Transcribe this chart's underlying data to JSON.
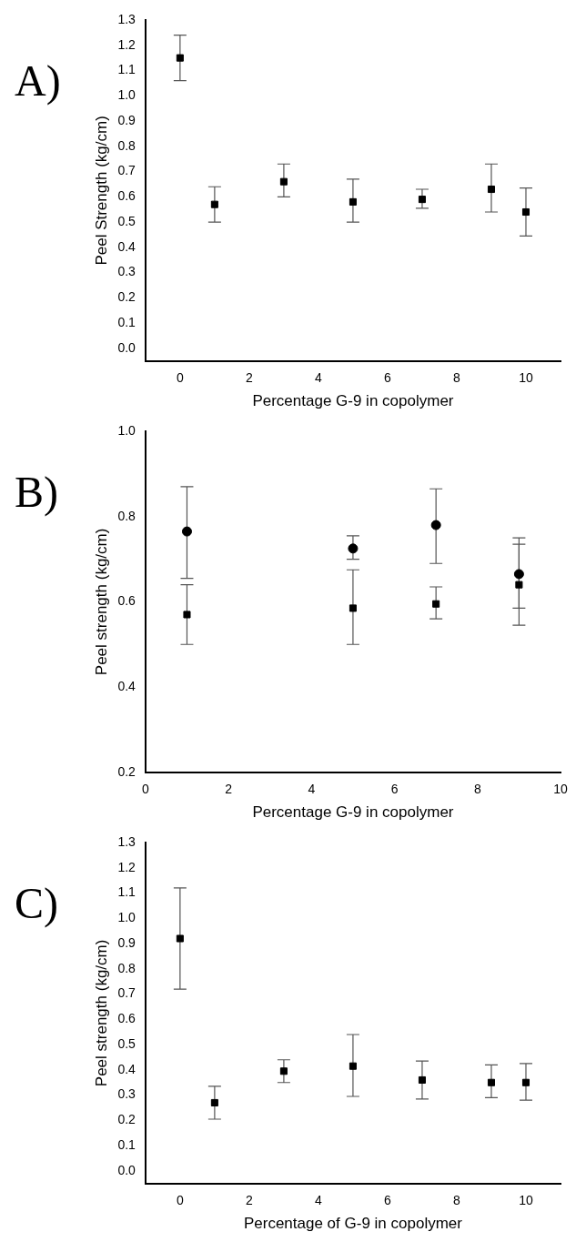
{
  "chart_data": [
    {
      "type": "scatter",
      "title": "A)",
      "xlabel": "Percentage G-9 in copolymer",
      "ylabel": "Peel Strength (kg/cm)",
      "marker": "square",
      "grid": false,
      "legend": false,
      "xlim": [
        -1,
        11
      ],
      "xticks": [
        0,
        2,
        4,
        6,
        8,
        10
      ],
      "ylim": [
        -0.05,
        1.3
      ],
      "yticks": [
        {
          "value": 0,
          "label": "0.0"
        },
        {
          "value": 0.1,
          "label": "0.1"
        },
        {
          "value": 0.2,
          "label": "0.2"
        },
        {
          "value": 0.3,
          "label": "0.3"
        },
        {
          "value": 0.4,
          "label": "0.4"
        },
        {
          "value": 0.5,
          "label": "0.5"
        },
        {
          "value": 0.6,
          "label": "0.6"
        },
        {
          "value": 0.7,
          "label": "0.7"
        },
        {
          "value": 0.8,
          "label": "0.8"
        },
        {
          "value": 0.9,
          "label": "0.9"
        },
        {
          "value": 1,
          "label": "1.0"
        },
        {
          "value": 1.1,
          "label": "1.1"
        },
        {
          "value": 1.2,
          "label": "1.2"
        },
        {
          "value": 1.3,
          "label": "1.3"
        }
      ],
      "series": [
        {
          "color": "#000000",
          "x": [
            0,
            1,
            3,
            5,
            7,
            9,
            10
          ],
          "values": [
            1.15,
            0.57,
            0.66,
            0.58,
            0.59,
            0.63,
            0.54
          ],
          "errors": [
            [
              1.06,
              1.24
            ],
            [
              0.5,
              0.64
            ],
            [
              0.6,
              0.73
            ],
            [
              0.5,
              0.67
            ],
            [
              0.555,
              0.63
            ],
            [
              0.54,
              0.73
            ],
            [
              0.445,
              0.635
            ]
          ]
        }
      ]
    },
    {
      "type": "scatter",
      "title": "B)",
      "xlabel": "Percentage G-9 in copolymer",
      "ylabel": "Peel strength (kg/cm)",
      "grid": false,
      "legend": false,
      "xlim": [
        0,
        10
      ],
      "xticks": [
        0,
        2,
        4,
        6,
        8,
        10
      ],
      "ylim": [
        0.2,
        1.0
      ],
      "yticks": [
        0.2,
        0.4,
        0.6,
        0.8,
        {
          "value": 1,
          "label": "1.0"
        }
      ],
      "series": [
        {
          "color": "#000000",
          "marker": "circle",
          "x": [
            1,
            5,
            7,
            9
          ],
          "values": [
            0.765,
            0.725,
            0.78,
            0.665
          ],
          "errors": [
            [
              0.655,
              0.87
            ],
            [
              0.7,
              0.755
            ],
            [
              0.69,
              0.865
            ],
            [
              0.585,
              0.75
            ]
          ]
        },
        {
          "color": "#000000",
          "marker": "square",
          "x": [
            1,
            5,
            7,
            9
          ],
          "values": [
            0.57,
            0.585,
            0.595,
            0.64
          ],
          "errors": [
            [
              0.5,
              0.64
            ],
            [
              0.5,
              0.675
            ],
            [
              0.56,
              0.635
            ],
            [
              0.545,
              0.735
            ]
          ]
        }
      ]
    },
    {
      "type": "scatter",
      "title": "C)",
      "xlabel": "Percentage of G-9 in copolymer",
      "ylabel": "Peel strength (kg/cm)",
      "marker": "square",
      "grid": false,
      "legend": false,
      "xlim": [
        -1,
        11
      ],
      "xticks": [
        0,
        2,
        4,
        6,
        8,
        10
      ],
      "ylim": [
        -0.05,
        1.3
      ],
      "yticks": [
        {
          "value": 0,
          "label": "0.0"
        },
        {
          "value": 0.1,
          "label": "0.1"
        },
        {
          "value": 0.2,
          "label": "0.2"
        },
        {
          "value": 0.3,
          "label": "0.3"
        },
        {
          "value": 0.4,
          "label": "0.4"
        },
        {
          "value": 0.5,
          "label": "0.5"
        },
        {
          "value": 0.6,
          "label": "0.6"
        },
        {
          "value": 0.7,
          "label": "0.7"
        },
        {
          "value": 0.8,
          "label": "0.8"
        },
        {
          "value": 0.9,
          "label": "0.9"
        },
        {
          "value": 1,
          "label": "1.0"
        },
        {
          "value": 1.1,
          "label": "1.1"
        },
        {
          "value": 1.2,
          "label": "1.2"
        },
        {
          "value": 1.3,
          "label": "1.3"
        }
      ],
      "series": [
        {
          "color": "#000000",
          "x": [
            0,
            1,
            3,
            5,
            7,
            9,
            10
          ],
          "values": [
            0.92,
            0.27,
            0.395,
            0.415,
            0.36,
            0.35,
            0.35
          ],
          "errors": [
            [
              0.72,
              1.12
            ],
            [
              0.205,
              0.335
            ],
            [
              0.35,
              0.44
            ],
            [
              0.295,
              0.54
            ],
            [
              0.285,
              0.435
            ],
            [
              0.29,
              0.42
            ],
            [
              0.28,
              0.425
            ]
          ]
        }
      ]
    }
  ]
}
